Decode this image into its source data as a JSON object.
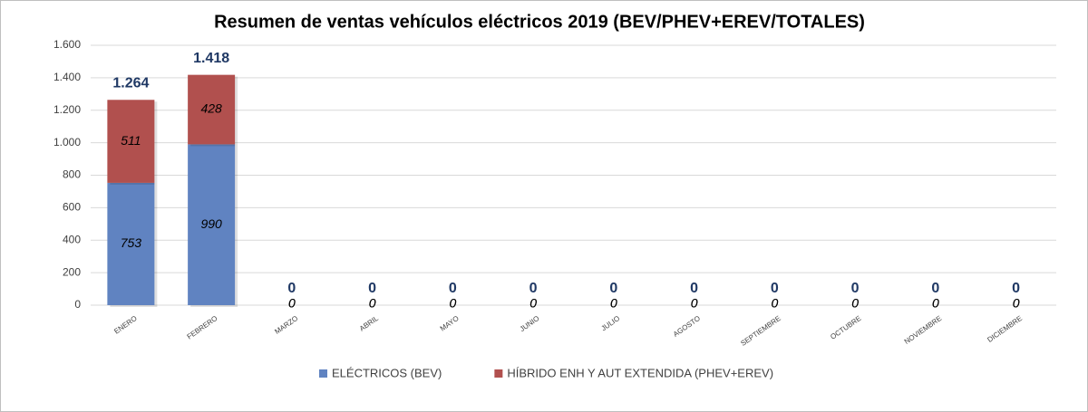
{
  "chart_data": {
    "type": "stacked-bar",
    "title": "Resumen de ventas vehículos eléctricos 2019 (BEV/PHEV+EREV/TOTALES)",
    "categories": [
      "ENERO",
      "FEBRERO",
      "MARZO",
      "ABRIL",
      "MAYO",
      "JUNIO",
      "JULIO",
      "AGOSTO",
      "SEPTIEMBRE",
      "OCTUBRE",
      "NOVIEMBRE",
      "DICIEMBRE"
    ],
    "series": [
      {
        "name": "ELÉCTRICOS (BEV)",
        "color": "#6083c1",
        "values": [
          753,
          990,
          0,
          0,
          0,
          0,
          0,
          0,
          0,
          0,
          0,
          0
        ]
      },
      {
        "name": "HÍBRIDO ENH Y AUT EXTENDIDA (PHEV+EREV)",
        "color": "#b1504e",
        "values": [
          511,
          428,
          0,
          0,
          0,
          0,
          0,
          0,
          0,
          0,
          0,
          0
        ]
      }
    ],
    "totals": {
      "values": [
        1264,
        1418,
        0,
        0,
        0,
        0,
        0,
        0,
        0,
        0,
        0,
        0
      ],
      "value_labels": [
        "1.264",
        "1.418",
        "0",
        "0",
        "0",
        "0",
        "0",
        "0",
        "0",
        "0",
        "0",
        "0"
      ]
    },
    "ylim": [
      0,
      1600
    ],
    "yticks": [
      0,
      200,
      400,
      600,
      800,
      {
        "value": 1000,
        "label": "1.000"
      },
      {
        "value": 1200,
        "label": "1.200"
      },
      {
        "value": 1400,
        "label": "1.400"
      },
      {
        "value": 1600,
        "label": "1.600"
      }
    ],
    "grid": true,
    "legend": "bottom"
  }
}
